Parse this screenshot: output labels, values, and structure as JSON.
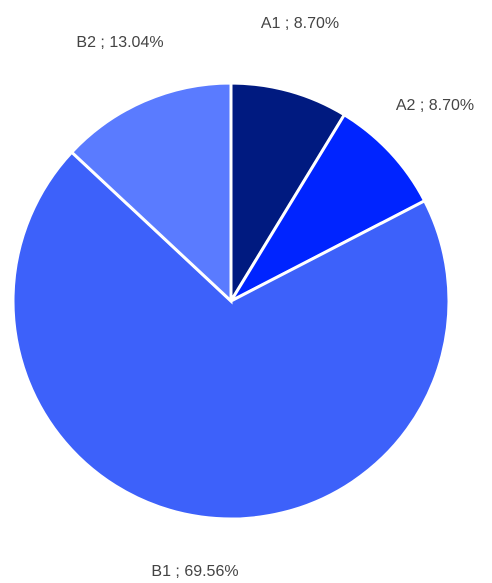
{
  "chart_data": {
    "type": "pie",
    "slices": [
      {
        "label": "A1 ; 8.70%",
        "category": "A1",
        "value": 8.7,
        "color": "#001a80"
      },
      {
        "label": "A2 ; 8.70%",
        "category": "A2",
        "value": 8.7,
        "color": "#0024ff"
      },
      {
        "label": "B1 ; 69.56%",
        "category": "B1",
        "value": 69.56,
        "color": "#3d61fa"
      },
      {
        "label": "B2 ; 13.04%",
        "category": "B2",
        "value": 13.04,
        "color": "#5a7bff"
      }
    ],
    "start_angle_deg": 0,
    "direction": "clockwise",
    "legend": "none"
  }
}
